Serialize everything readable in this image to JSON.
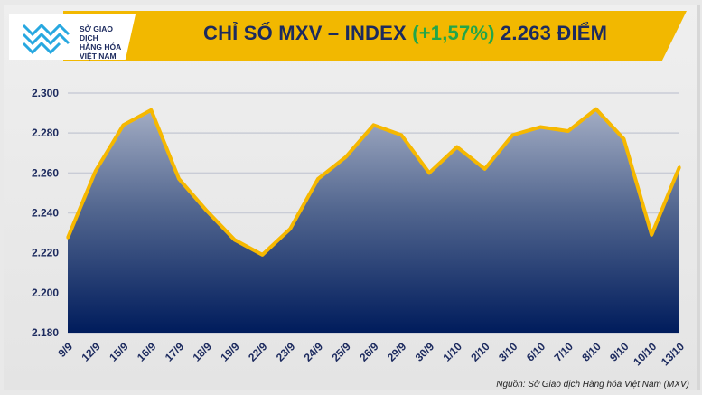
{
  "header": {
    "logo_lines": [
      "SỞ GIAO DỊCH",
      "HÀNG HÓA",
      "VIỆT NAM"
    ],
    "title_prefix": "CHỈ SỐ MXV – INDEX ",
    "title_pct": "(+1,57%)",
    "title_suffix": " 2.263 ĐIỂM"
  },
  "source": "Nguồn: Sở Giao dịch Hàng hóa Việt Nam (MXV)",
  "colors": {
    "line": "#f6b800",
    "fill_top": "#a3adc4",
    "fill_bottom": "#001c5c",
    "title": "#1c2a5e",
    "positive": "#22a64a",
    "banner": "#f2b800"
  },
  "chart_data": {
    "type": "area",
    "categories": [
      "9/9",
      "12/9",
      "15/9",
      "16/9",
      "17/9",
      "18/9",
      "19/9",
      "22/9",
      "23/9",
      "24/9",
      "25/9",
      "26/9",
      "29/9",
      "30/9",
      "1/10",
      "2/10",
      "3/10",
      "6/10",
      "7/10",
      "8/10",
      "9/10",
      "10/10",
      "13/10"
    ],
    "values": [
      2227.5,
      2261,
      2284,
      2291.5,
      2257,
      2241,
      2226.5,
      2219,
      2232,
      2257,
      2268,
      2284,
      2279,
      2260,
      2273,
      2262,
      2279,
      2283,
      2281,
      2292,
      2277,
      2229,
      2263
    ],
    "ylim": [
      2180,
      2300
    ],
    "yticks": [
      "2.180",
      "2.200",
      "2.220",
      "2.240",
      "2.260",
      "2.280",
      "2.300"
    ],
    "ytick_values": [
      2180,
      2200,
      2220,
      2240,
      2260,
      2280,
      2300
    ],
    "grid": true
  }
}
